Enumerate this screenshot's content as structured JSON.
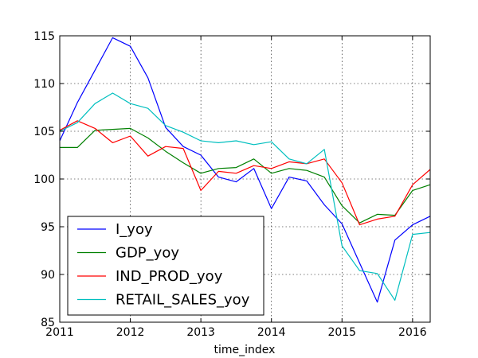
{
  "chart_data": {
    "type": "line",
    "xlabel": "time_index",
    "ylabel": "",
    "xlim": [
      2011,
      2016.25
    ],
    "ylim": [
      85,
      115
    ],
    "x_ticks": [
      2011,
      2012,
      2013,
      2014,
      2015,
      2016
    ],
    "x_tick_labels": [
      "2011",
      "2012",
      "2013",
      "2014",
      "2015",
      "2016"
    ],
    "y_ticks": [
      85,
      90,
      95,
      100,
      105,
      110,
      115
    ],
    "y_tick_labels": [
      "85",
      "90",
      "95",
      "100",
      "105",
      "110",
      "115"
    ],
    "grid": true,
    "legend_position": "lower-left",
    "x": [
      2011.0,
      2011.25,
      2011.5,
      2011.75,
      2012.0,
      2012.25,
      2012.5,
      2012.75,
      2013.0,
      2013.25,
      2013.5,
      2013.75,
      2014.0,
      2014.25,
      2014.5,
      2014.75,
      2015.0,
      2015.25,
      2015.5,
      2015.75,
      2016.0,
      2016.25
    ],
    "series": [
      {
        "name": "I_yoy",
        "color": "#0000ff",
        "values": [
          104.0,
          108.0,
          111.4,
          114.8,
          113.9,
          110.6,
          105.4,
          103.4,
          102.5,
          100.2,
          99.7,
          101.1,
          96.9,
          100.2,
          99.8,
          97.3,
          95.3,
          91.2,
          87.1,
          93.6,
          95.2,
          96.1
        ]
      },
      {
        "name": "GDP_yoy",
        "color": "#008000",
        "values": [
          103.3,
          103.3,
          105.1,
          105.2,
          105.3,
          104.3,
          102.9,
          101.7,
          100.6,
          101.1,
          101.2,
          102.1,
          100.6,
          101.1,
          100.9,
          100.2,
          97.2,
          95.4,
          96.3,
          96.2,
          98.8,
          99.4
        ]
      },
      {
        "name": "IND_PROD_yoy",
        "color": "#ff0000",
        "values": [
          105.1,
          106.1,
          105.3,
          103.8,
          104.5,
          102.4,
          103.4,
          103.2,
          98.8,
          100.8,
          100.6,
          101.4,
          101.1,
          101.8,
          101.6,
          102.1,
          99.6,
          95.2,
          95.8,
          96.1,
          99.4,
          101.0
        ]
      },
      {
        "name": "RETAIL_SALES_yoy",
        "color": "#00bfbf",
        "values": [
          105.0,
          105.9,
          107.9,
          109.0,
          107.9,
          107.4,
          105.6,
          104.9,
          104.0,
          103.8,
          104.0,
          103.6,
          103.9,
          102.1,
          101.6,
          103.1,
          93.0,
          90.4,
          90.1,
          87.3,
          94.2,
          94.4
        ]
      }
    ]
  }
}
